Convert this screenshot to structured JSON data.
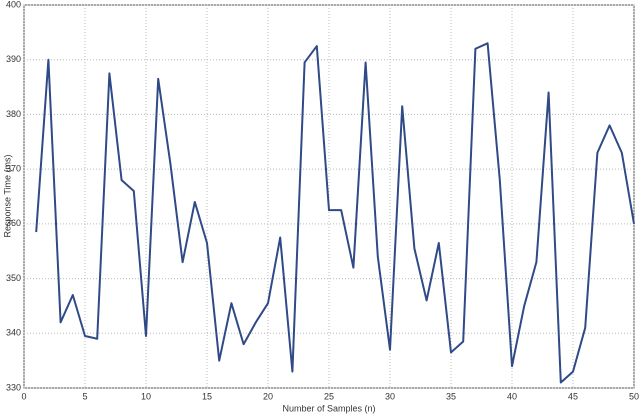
{
  "chart_data": {
    "type": "line",
    "x_label": "Number of Samples (n)",
    "y_label": "Response Time (ms)",
    "x": [
      1,
      2,
      3,
      4,
      5,
      6,
      7,
      8,
      9,
      10,
      11,
      12,
      13,
      14,
      15,
      16,
      17,
      18,
      19,
      20,
      21,
      22,
      23,
      24,
      25,
      26,
      27,
      28,
      29,
      30,
      31,
      32,
      33,
      34,
      35,
      36,
      37,
      38,
      39,
      40,
      41,
      42,
      43,
      44,
      45,
      46,
      47,
      48,
      49,
      50
    ],
    "values": [
      358.5,
      390,
      342,
      347,
      339.5,
      339,
      387.5,
      368,
      366,
      339.5,
      386.5,
      371,
      353,
      364,
      356.5,
      335,
      345.5,
      338,
      342,
      345.5,
      357.5,
      333,
      389.5,
      392.5,
      362.5,
      362.5,
      352,
      389.5,
      354,
      337,
      381.5,
      355.5,
      346,
      356.5,
      336.5,
      338.5,
      392,
      393,
      368,
      334,
      345,
      353,
      384,
      331,
      333,
      341,
      373,
      378,
      373,
      360
    ],
    "color": "#2f4a87",
    "xlim": [
      0,
      50
    ],
    "xticks": [
      0,
      5,
      10,
      15,
      20,
      25,
      30,
      35,
      40,
      45,
      50
    ],
    "ylim": [
      330,
      400
    ],
    "yticks": [
      330,
      340,
      350,
      360,
      370,
      380,
      390,
      400
    ],
    "grid": true
  }
}
